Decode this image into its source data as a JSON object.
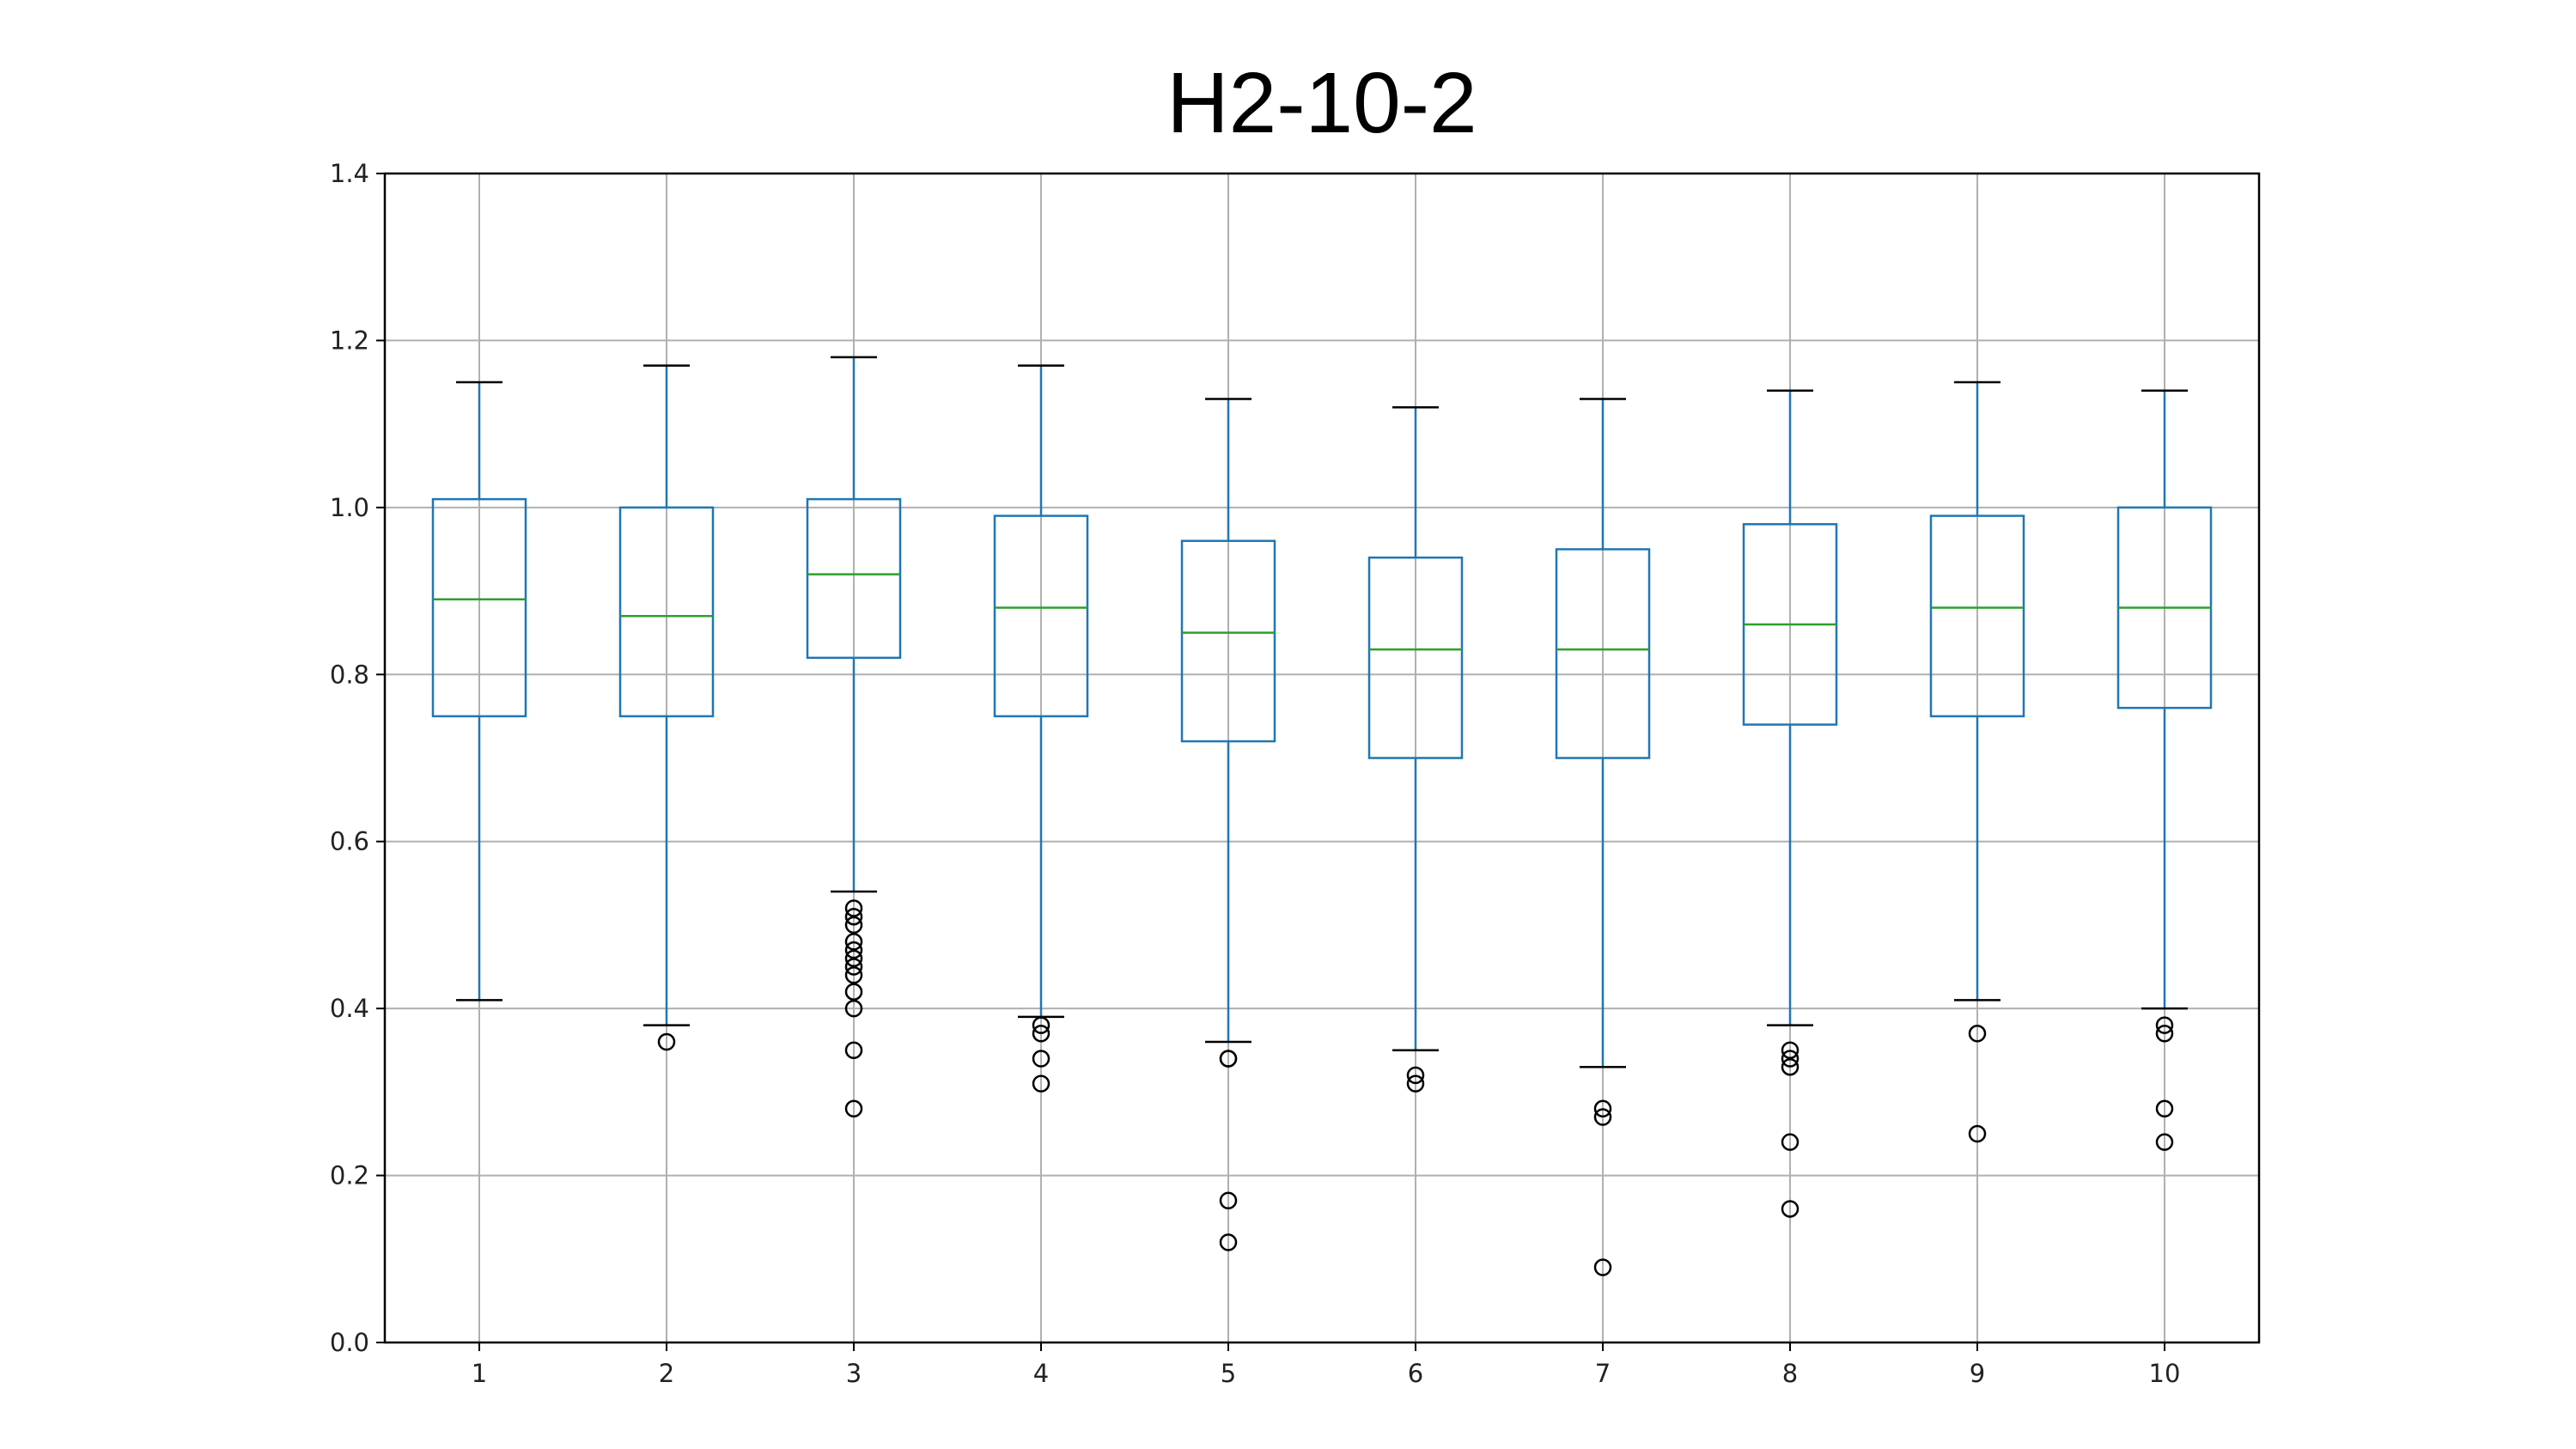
{
  "chart_data": {
    "type": "box",
    "title": "H2-10-2",
    "xlabel": "",
    "ylabel": "",
    "ylim": [
      0.0,
      1.4
    ],
    "yticks": [
      "0.0",
      "0.2",
      "0.4",
      "0.6",
      "0.8",
      "1.0",
      "1.2",
      "1.4"
    ],
    "grid": true,
    "categories": [
      "1",
      "2",
      "3",
      "4",
      "5",
      "6",
      "7",
      "8",
      "9",
      "10"
    ],
    "boxes": [
      {
        "category": "1",
        "whisker_low": 0.41,
        "q1": 0.75,
        "median": 0.89,
        "q3": 1.01,
        "whisker_high": 1.15,
        "outliers": []
      },
      {
        "category": "2",
        "whisker_low": 0.38,
        "q1": 0.75,
        "median": 0.87,
        "q3": 1.0,
        "whisker_high": 1.17,
        "outliers": [
          0.36
        ]
      },
      {
        "category": "3",
        "whisker_low": 0.54,
        "q1": 0.82,
        "median": 0.92,
        "q3": 1.01,
        "whisker_high": 1.18,
        "outliers": [
          0.52,
          0.51,
          0.5,
          0.48,
          0.47,
          0.46,
          0.45,
          0.44,
          0.42,
          0.4,
          0.35,
          0.28
        ]
      },
      {
        "category": "4",
        "whisker_low": 0.39,
        "q1": 0.75,
        "median": 0.88,
        "q3": 0.99,
        "whisker_high": 1.17,
        "outliers": [
          0.38,
          0.37,
          0.34,
          0.31
        ]
      },
      {
        "category": "5",
        "whisker_low": 0.36,
        "q1": 0.72,
        "median": 0.85,
        "q3": 0.96,
        "whisker_high": 1.13,
        "outliers": [
          0.34,
          0.34,
          0.17,
          0.12
        ]
      },
      {
        "category": "6",
        "whisker_low": 0.35,
        "q1": 0.7,
        "median": 0.83,
        "q3": 0.94,
        "whisker_high": 1.12,
        "outliers": [
          0.32,
          0.31
        ]
      },
      {
        "category": "7",
        "whisker_low": 0.33,
        "q1": 0.7,
        "median": 0.83,
        "q3": 0.95,
        "whisker_high": 1.13,
        "outliers": [
          0.28,
          0.27,
          0.09
        ]
      },
      {
        "category": "8",
        "whisker_low": 0.38,
        "q1": 0.74,
        "median": 0.86,
        "q3": 0.98,
        "whisker_high": 1.14,
        "outliers": [
          0.35,
          0.34,
          0.33,
          0.24,
          0.16
        ]
      },
      {
        "category": "9",
        "whisker_low": 0.41,
        "q1": 0.75,
        "median": 0.88,
        "q3": 0.99,
        "whisker_high": 1.15,
        "outliers": [
          0.37,
          0.25
        ]
      },
      {
        "category": "10",
        "whisker_low": 0.4,
        "q1": 0.76,
        "median": 0.88,
        "q3": 1.0,
        "whisker_high": 1.14,
        "outliers": [
          0.38,
          0.37,
          0.28,
          0.24
        ]
      }
    ],
    "colors": {
      "box": "#1f77b4",
      "median": "#2ca02c",
      "whisker_cap": "#000000",
      "outlier": "#000000",
      "grid": "#b0b0b0",
      "axes": "#000000"
    }
  }
}
